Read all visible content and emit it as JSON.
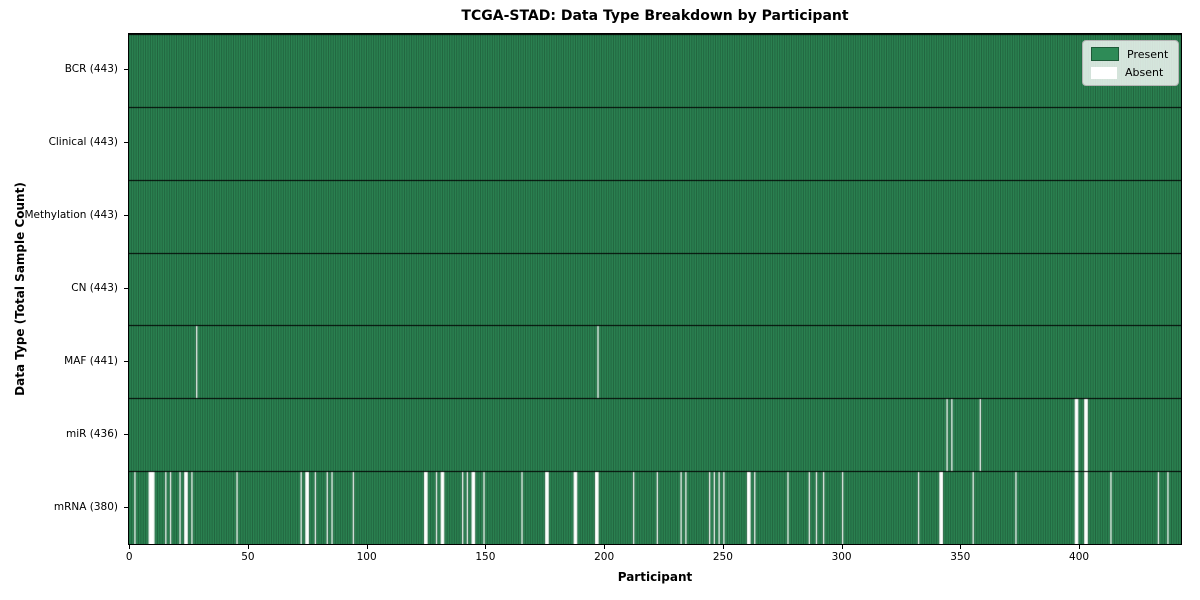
{
  "chart_data": {
    "type": "heatmap",
    "title": "TCGA-STAD: Data Type Breakdown by Participant",
    "xlabel": "Participant",
    "ylabel": "Data Type (Total Sample Count)",
    "n_participants": 443,
    "xlim": [
      -0.5,
      442.5
    ],
    "x_ticks": [
      0,
      50,
      100,
      150,
      200,
      250,
      300,
      350,
      400
    ],
    "grid": false,
    "legend_position": "upper right",
    "legend": [
      {
        "label": "Present",
        "color": "#2e8b57"
      },
      {
        "label": "Absent",
        "color": "#ffffff"
      }
    ],
    "colors": {
      "present_fill": "#2e8b57",
      "bar_edge": "rgba(0,0,0,0.5)",
      "row_separator": "#000000",
      "absent_fill": "#ffffff",
      "legend_bg": "rgba(255,255,255,0.8)",
      "legend_border": "#b3b3b3"
    },
    "rows": [
      {
        "label": "BCR (443)",
        "data_type": "BCR",
        "present_count": 443,
        "absent_participants": []
      },
      {
        "label": "Clinical (443)",
        "data_type": "Clinical",
        "present_count": 443,
        "absent_participants": []
      },
      {
        "label": "Methylation (443)",
        "data_type": "Methylation",
        "present_count": 443,
        "absent_participants": []
      },
      {
        "label": "CN (443)",
        "data_type": "CN",
        "present_count": 443,
        "absent_participants": []
      },
      {
        "label": "MAF (441)",
        "data_type": "MAF",
        "present_count": 441,
        "absent_participants": [
          28,
          197
        ]
      },
      {
        "label": "miR (436)",
        "data_type": "miR",
        "present_count": 436,
        "absent_participants": [
          344,
          346,
          358,
          398,
          399,
          402,
          403
        ]
      },
      {
        "label": "mRNA (380)",
        "data_type": "mRNA",
        "present_count": 380,
        "absent_participants": [
          2,
          8,
          9,
          10,
          15,
          17,
          21,
          23,
          24,
          26,
          45,
          72,
          74,
          75,
          78,
          83,
          85,
          94,
          124,
          125,
          129,
          131,
          132,
          140,
          142,
          144,
          145,
          149,
          165,
          175,
          176,
          187,
          188,
          196,
          197,
          212,
          222,
          232,
          234,
          244,
          246,
          248,
          250,
          260,
          261,
          263,
          277,
          286,
          289,
          292,
          300,
          332,
          341,
          342,
          355,
          373,
          398,
          399,
          402,
          403,
          413,
          433,
          437
        ]
      }
    ]
  }
}
